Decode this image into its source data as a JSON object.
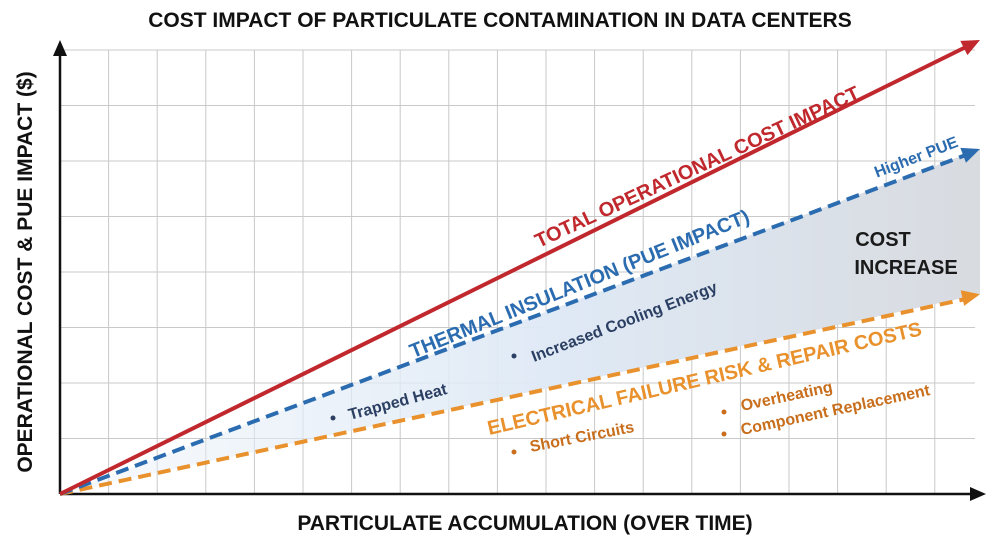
{
  "chart_data": {
    "type": "line",
    "title": "COST IMPACT OF PARTICULATE CONTAMINATION IN DATA CENTERS",
    "xlabel": "PARTICULATE ACCUMULATION (OVER TIME)",
    "ylabel": "OPERATIONAL COST & PUE IMPACT ($)",
    "grid": true,
    "series": [
      {
        "name": "TOTAL OPERATIONAL COST IMPACT",
        "color": "#c0282d",
        "style": "solid",
        "x": [
          0,
          1
        ],
        "y": [
          0,
          1.0
        ]
      },
      {
        "name": "THERMAL INSULATION (PUE IMPACT)",
        "color": "#2b6cb0",
        "style": "dashed",
        "x": [
          0,
          1
        ],
        "y": [
          0,
          0.76
        ]
      },
      {
        "name": "ELECTRICAL FAILURE RISK & REPAIR COSTS",
        "color": "#e8912d",
        "style": "dashed",
        "x": [
          0,
          1
        ],
        "y": [
          0,
          0.44
        ]
      }
    ],
    "annotations": {
      "higher_pue": "Higher PUE",
      "cost_increase": [
        "COST",
        "INCREASE"
      ],
      "thermal_bullets": [
        "Trapped Heat",
        "Increased Cooling Energy"
      ],
      "electrical_bullets": [
        "Short Circuits",
        "Overheating",
        "Component Replacement"
      ]
    }
  },
  "colors": {
    "total": "#c0282d",
    "thermal": "#2b6cb0",
    "electrical": "#e8912d",
    "fill_light": "#e6eff8",
    "fill_dark": "#dddfe3",
    "grid": "#c9c9c9"
  }
}
